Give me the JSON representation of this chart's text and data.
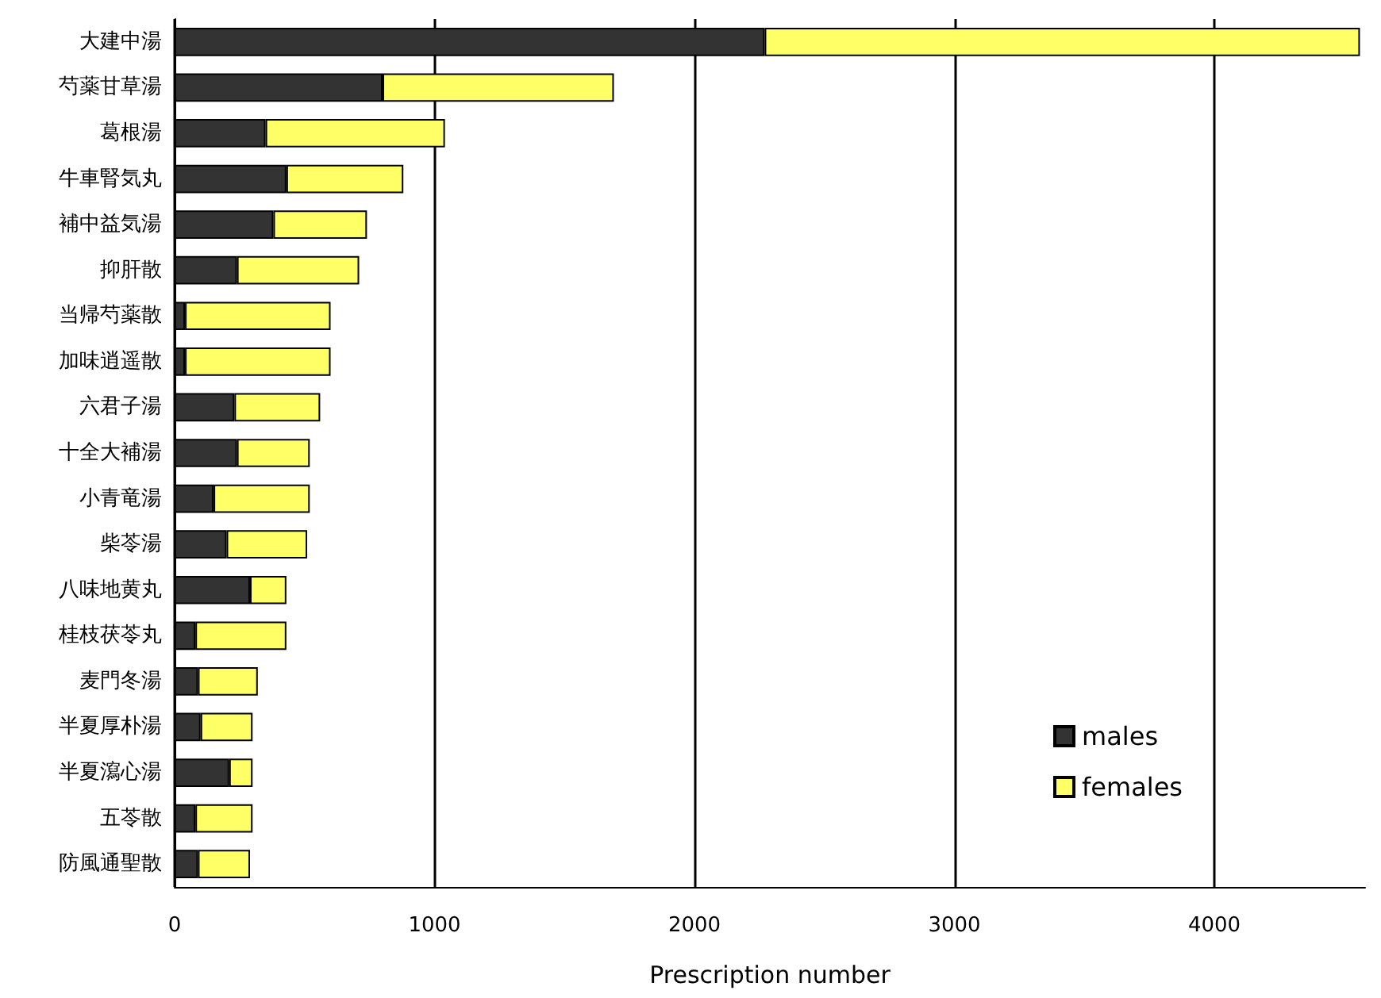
{
  "chart_data": {
    "type": "bar",
    "orientation": "horizontal",
    "stacked": true,
    "xlabel": "Prescription number",
    "categories": [
      "大建中湯",
      "芍薬甘草湯",
      "葛根湯",
      "牛車腎気丸",
      "補中益気湯",
      "抑肝散",
      "当帰芍薬散",
      "加味逍遥散",
      "六君子湯",
      "十全大補湯",
      "小青竜湯",
      "柴苓湯",
      "八味地黄丸",
      "桂枝茯苓丸",
      "麦門冬湯",
      "半夏厚朴湯",
      "半夏瀉心湯",
      "五苓散",
      "防風通聖散"
    ],
    "series": [
      {
        "name": "males",
        "color": "#333333",
        "values": [
          2270,
          800,
          350,
          430,
          380,
          240,
          40,
          40,
          230,
          240,
          150,
          200,
          290,
          80,
          90,
          100,
          210,
          80,
          90
        ]
      },
      {
        "name": "females",
        "color": "#ffff66",
        "values": [
          2290,
          890,
          690,
          450,
          360,
          470,
          560,
          560,
          330,
          280,
          370,
          310,
          140,
          350,
          230,
          200,
          90,
          220,
          200
        ]
      }
    ],
    "xlim": [
      0,
      4580
    ],
    "xticks": [
      0,
      1000,
      2000,
      3000,
      4000
    ],
    "grid": "x",
    "legend": "bottom right"
  }
}
